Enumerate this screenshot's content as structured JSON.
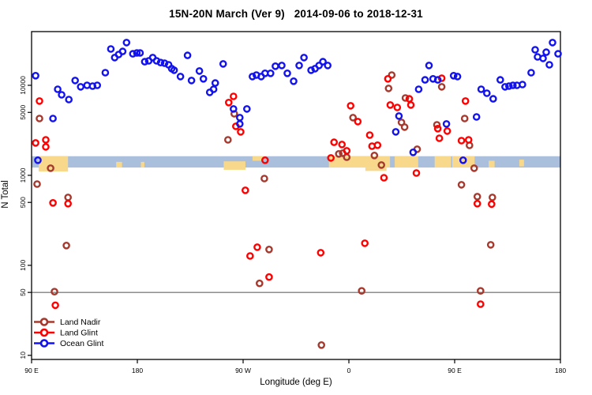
{
  "chart_data": {
    "type": "scatter",
    "title": "15N-20N March (Ver 9)   2014-09-06 to 2018-12-31",
    "xlabel": "Longitude (deg E)",
    "ylabel": "N Total",
    "x_axis": {
      "min": 90,
      "max": 540,
      "ticks": [
        {
          "pos": 90,
          "label": "90 E"
        },
        {
          "pos": 180,
          "label": "180"
        },
        {
          "pos": 270,
          "label": "90 W"
        },
        {
          "pos": 360,
          "label": "0"
        },
        {
          "pos": 450,
          "label": "90 E"
        },
        {
          "pos": 540,
          "label": "180"
        }
      ]
    },
    "y_axis": {
      "scale": "log",
      "min": 9,
      "max": 39500,
      "ticks": [
        {
          "value": 10000,
          "label": "10000"
        },
        {
          "value": 5000,
          "label": "5000"
        },
        {
          "value": 1000,
          "label": "1000"
        },
        {
          "value": 500,
          "label": "500"
        },
        {
          "value": 100,
          "label": "100"
        },
        {
          "value": 50,
          "label": "50"
        },
        {
          "value": 10,
          "label": "10"
        }
      ]
    },
    "reference_line": {
      "value": 50,
      "color": "#808080"
    },
    "ocean_band": {
      "n_range": [
        1220,
        1630
      ],
      "color": "#A9BFDB"
    },
    "land_color": "#F8D88A",
    "land_band_segments": [
      {
        "x": [
          96,
          121
        ],
        "y": [
          0,
          1.35
        ]
      },
      {
        "x": [
          162,
          167
        ],
        "y": [
          0.5,
          1
        ]
      },
      {
        "x": [
          183,
          186
        ],
        "y": [
          0.5,
          1
        ]
      },
      {
        "x": [
          253.5,
          272
        ],
        "y": [
          0.45,
          1.2
        ]
      },
      {
        "x": [
          278,
          287
        ],
        "y": [
          0,
          0.4
        ]
      },
      {
        "x": [
          343,
          395
        ],
        "y": [
          0,
          1
        ]
      },
      {
        "x": [
          374,
          392
        ],
        "y": [
          1,
          1.3
        ]
      },
      {
        "x": [
          399,
          419
        ],
        "y": [
          0,
          1
        ]
      },
      {
        "x": [
          433,
          447
        ],
        "y": [
          0,
          1
        ]
      },
      {
        "x": [
          448,
          467
        ],
        "y": [
          0,
          1
        ]
      },
      {
        "x": [
          479,
          484
        ],
        "y": [
          0.4,
          1
        ]
      },
      {
        "x": [
          505,
          509
        ],
        "y": [
          0.3,
          0.9
        ]
      }
    ],
    "legend_position": "bottom-left",
    "series": [
      {
        "name": "Land Nadir",
        "color": "#A5392E",
        "points": [
          [
            96.7,
            4280
          ],
          [
            106.2,
            1200
          ],
          [
            94.7,
            800
          ],
          [
            121.0,
            568
          ],
          [
            119.6,
            166
          ],
          [
            109.5,
            51
          ],
          [
            257.1,
            2480
          ],
          [
            262.5,
            4830
          ],
          [
            288.1,
            920
          ],
          [
            292.1,
            150
          ],
          [
            284.0,
            63
          ],
          [
            336.6,
            13
          ],
          [
            351.4,
            1730
          ],
          [
            354.7,
            1760
          ],
          [
            358.2,
            1590
          ],
          [
            363.5,
            4370
          ],
          [
            370.9,
            52
          ],
          [
            381.7,
            1660
          ],
          [
            387.7,
            1300
          ],
          [
            393.8,
            9230
          ],
          [
            396.5,
            13000
          ],
          [
            404.7,
            3870
          ],
          [
            407.4,
            3430
          ],
          [
            408.1,
            7230
          ],
          [
            418.1,
            1950
          ],
          [
            434.9,
            3640
          ],
          [
            439.0,
            9620
          ],
          [
            458.5,
            4280
          ],
          [
            462.6,
            2150
          ],
          [
            466.6,
            1200
          ],
          [
            455.8,
            785
          ],
          [
            469.3,
            580
          ],
          [
            482.1,
            568
          ],
          [
            480.7,
            169
          ],
          [
            472.0,
            52
          ]
        ]
      },
      {
        "name": "Land Glint",
        "color": "#FF0000",
        "points": [
          [
            96.7,
            6680
          ],
          [
            93.4,
            2290
          ],
          [
            102.1,
            2480
          ],
          [
            102.1,
            2070
          ],
          [
            108.2,
            494
          ],
          [
            121.0,
            484
          ],
          [
            110.2,
            36
          ],
          [
            257.8,
            6430
          ],
          [
            261.8,
            7530
          ],
          [
            263.8,
            3500
          ],
          [
            267.9,
            3040
          ],
          [
            271.9,
            681
          ],
          [
            282.0,
            159
          ],
          [
            275.9,
            127
          ],
          [
            292.1,
            74
          ],
          [
            288.7,
            1470
          ],
          [
            336.0,
            138
          ],
          [
            344.7,
            1560
          ],
          [
            347.4,
            2330
          ],
          [
            354.1,
            2200
          ],
          [
            358.2,
            1870
          ],
          [
            361.5,
            5920
          ],
          [
            367.6,
            3950
          ],
          [
            373.6,
            176
          ],
          [
            377.7,
            2800
          ],
          [
            379.7,
            2110
          ],
          [
            384.4,
            2160
          ],
          [
            389.8,
            940
          ],
          [
            393.2,
            11800
          ],
          [
            395.2,
            6040
          ],
          [
            401.2,
            5680
          ],
          [
            411.4,
            7070
          ],
          [
            412.7,
            6040
          ],
          [
            417.4,
            1060
          ],
          [
            435.6,
            3300
          ],
          [
            437.0,
            2580
          ],
          [
            439.0,
            12000
          ],
          [
            443.7,
            3100
          ],
          [
            455.8,
            2430
          ],
          [
            459.2,
            6680
          ],
          [
            461.9,
            2480
          ],
          [
            469.3,
            484
          ],
          [
            472.0,
            37
          ],
          [
            481.4,
            478
          ]
        ]
      },
      {
        "name": "Ocean Glint",
        "color": "#1212EE",
        "points": [
          [
            93.4,
            12800
          ],
          [
            108.2,
            4280
          ],
          [
            112.2,
            9040
          ],
          [
            115.6,
            7850
          ],
          [
            121.7,
            6950
          ],
          [
            127.1,
            11300
          ],
          [
            131.8,
            9620
          ],
          [
            137.2,
            10000
          ],
          [
            141.9,
            9800
          ],
          [
            145.9,
            10000
          ],
          [
            152.7,
            13800
          ],
          [
            157.4,
            25300
          ],
          [
            160.7,
            20300
          ],
          [
            164.1,
            22000
          ],
          [
            167.5,
            23800
          ],
          [
            170.8,
            29800
          ],
          [
            176.2,
            22400
          ],
          [
            179.6,
            22900
          ],
          [
            182.3,
            22900
          ],
          [
            186.3,
            18300
          ],
          [
            189.7,
            18700
          ],
          [
            193.1,
            20300
          ],
          [
            196.4,
            18700
          ],
          [
            199.8,
            17900
          ],
          [
            203.2,
            17600
          ],
          [
            206.6,
            16900
          ],
          [
            209.2,
            15300
          ],
          [
            211.3,
            14700
          ],
          [
            216.7,
            12500
          ],
          [
            222.7,
            21500
          ],
          [
            226.1,
            11300
          ],
          [
            232.8,
            14400
          ],
          [
            236.2,
            11800
          ],
          [
            241.6,
            8350
          ],
          [
            244.9,
            9040
          ],
          [
            246.3,
            10600
          ],
          [
            253.0,
            17300
          ],
          [
            261.8,
            5460
          ],
          [
            267.2,
            4370
          ],
          [
            267.2,
            3720
          ],
          [
            273.2,
            5460
          ],
          [
            277.9,
            12500
          ],
          [
            281.3,
            13000
          ],
          [
            285.4,
            12500
          ],
          [
            288.7,
            13600
          ],
          [
            293.4,
            13600
          ],
          [
            297.5,
            16300
          ],
          [
            302.9,
            16600
          ],
          [
            307.6,
            13600
          ],
          [
            313.0,
            11100
          ],
          [
            317.7,
            16600
          ],
          [
            321.8,
            20300
          ],
          [
            327.8,
            14700
          ],
          [
            331.2,
            15300
          ],
          [
            334.6,
            16600
          ],
          [
            337.9,
            18300
          ],
          [
            342.0,
            16600
          ],
          [
            95.4,
            1470
          ],
          [
            399.9,
            3040
          ],
          [
            402.6,
            4550
          ],
          [
            414.7,
            1800
          ],
          [
            419.4,
            9040
          ],
          [
            424.8,
            11500
          ],
          [
            428.2,
            16600
          ],
          [
            431.6,
            11800
          ],
          [
            435.6,
            11500
          ],
          [
            443.0,
            3720
          ],
          [
            449.1,
            12800
          ],
          [
            452.4,
            12500
          ],
          [
            457.2,
            1470
          ],
          [
            468.6,
            4450
          ],
          [
            472.6,
            9040
          ],
          [
            477.4,
            8160
          ],
          [
            482.8,
            7070
          ],
          [
            488.8,
            11500
          ],
          [
            492.9,
            9620
          ],
          [
            496.2,
            9800
          ],
          [
            499.6,
            10000
          ],
          [
            503.0,
            10000
          ],
          [
            507.7,
            10200
          ],
          [
            515.1,
            13800
          ],
          [
            518.5,
            24800
          ],
          [
            520.5,
            20700
          ],
          [
            525.2,
            19900
          ],
          [
            527.9,
            23300
          ],
          [
            530.6,
            16900
          ],
          [
            533.3,
            29800
          ],
          [
            538.0,
            22400
          ]
        ]
      }
    ]
  }
}
